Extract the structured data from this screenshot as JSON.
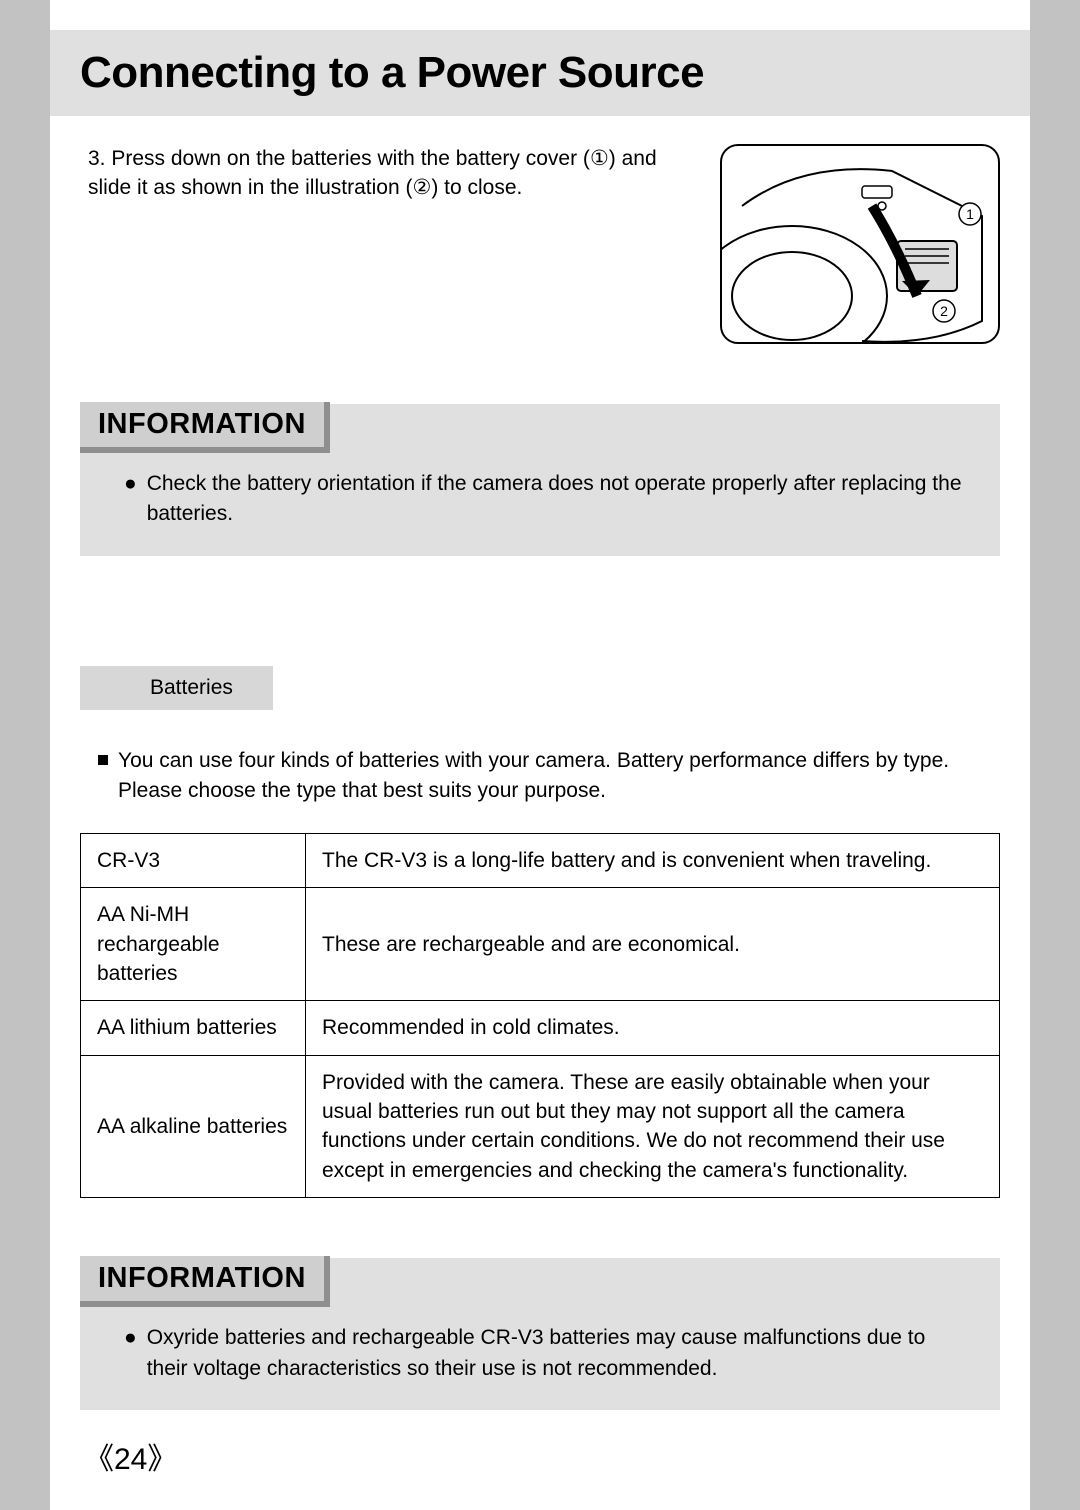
{
  "title": "Connecting to a Power Source",
  "step": {
    "number": "3.",
    "text_before": "Press down on the batteries with the battery cover (",
    "marker1": "①",
    "text_mid": ") and slide it as shown in the illustration (",
    "marker2": "②",
    "text_after": ") to close."
  },
  "info1": {
    "heading": "INFORMATION",
    "bullet": "Check the battery orientation if the camera does not operate properly after replacing the batteries."
  },
  "subheading": "Batteries",
  "intro_line1": "You can use four kinds of batteries with your camera. Battery performance differs by type.",
  "intro_line2": "Please choose the type that best suits your purpose.",
  "table": {
    "rows": [
      {
        "type": "CR-V3",
        "desc": "The CR-V3 is a long-life battery and is convenient when traveling."
      },
      {
        "type": "AA Ni-MH rechargeable batteries",
        "desc": "These are rechargeable and are economical."
      },
      {
        "type": "AA lithium batteries",
        "desc": "Recommended in cold climates."
      },
      {
        "type": "AA alkaline batteries",
        "desc": "Provided with the camera. These are easily obtainable when your usual batteries run out but they may not support all the camera functions under certain conditions. We do not recommend their use except in emergencies and checking the camera's functionality."
      }
    ]
  },
  "info2": {
    "heading": "INFORMATION",
    "bullet": "Oxyride batteries and rechargeable CR-V3 batteries may cause malfunctions due to their voltage characteristics so their use is not recommended."
  },
  "page_number": "《24》",
  "colors": {
    "page_bg": "#ffffff",
    "outer_bg": "#c2c2c2",
    "bar_bg": "#e0e0e0",
    "info_header_bg": "#cfcfcf",
    "info_header_shadow": "#8f8f8f",
    "subhead_bg": "#d7d7d7",
    "border": "#000000"
  }
}
